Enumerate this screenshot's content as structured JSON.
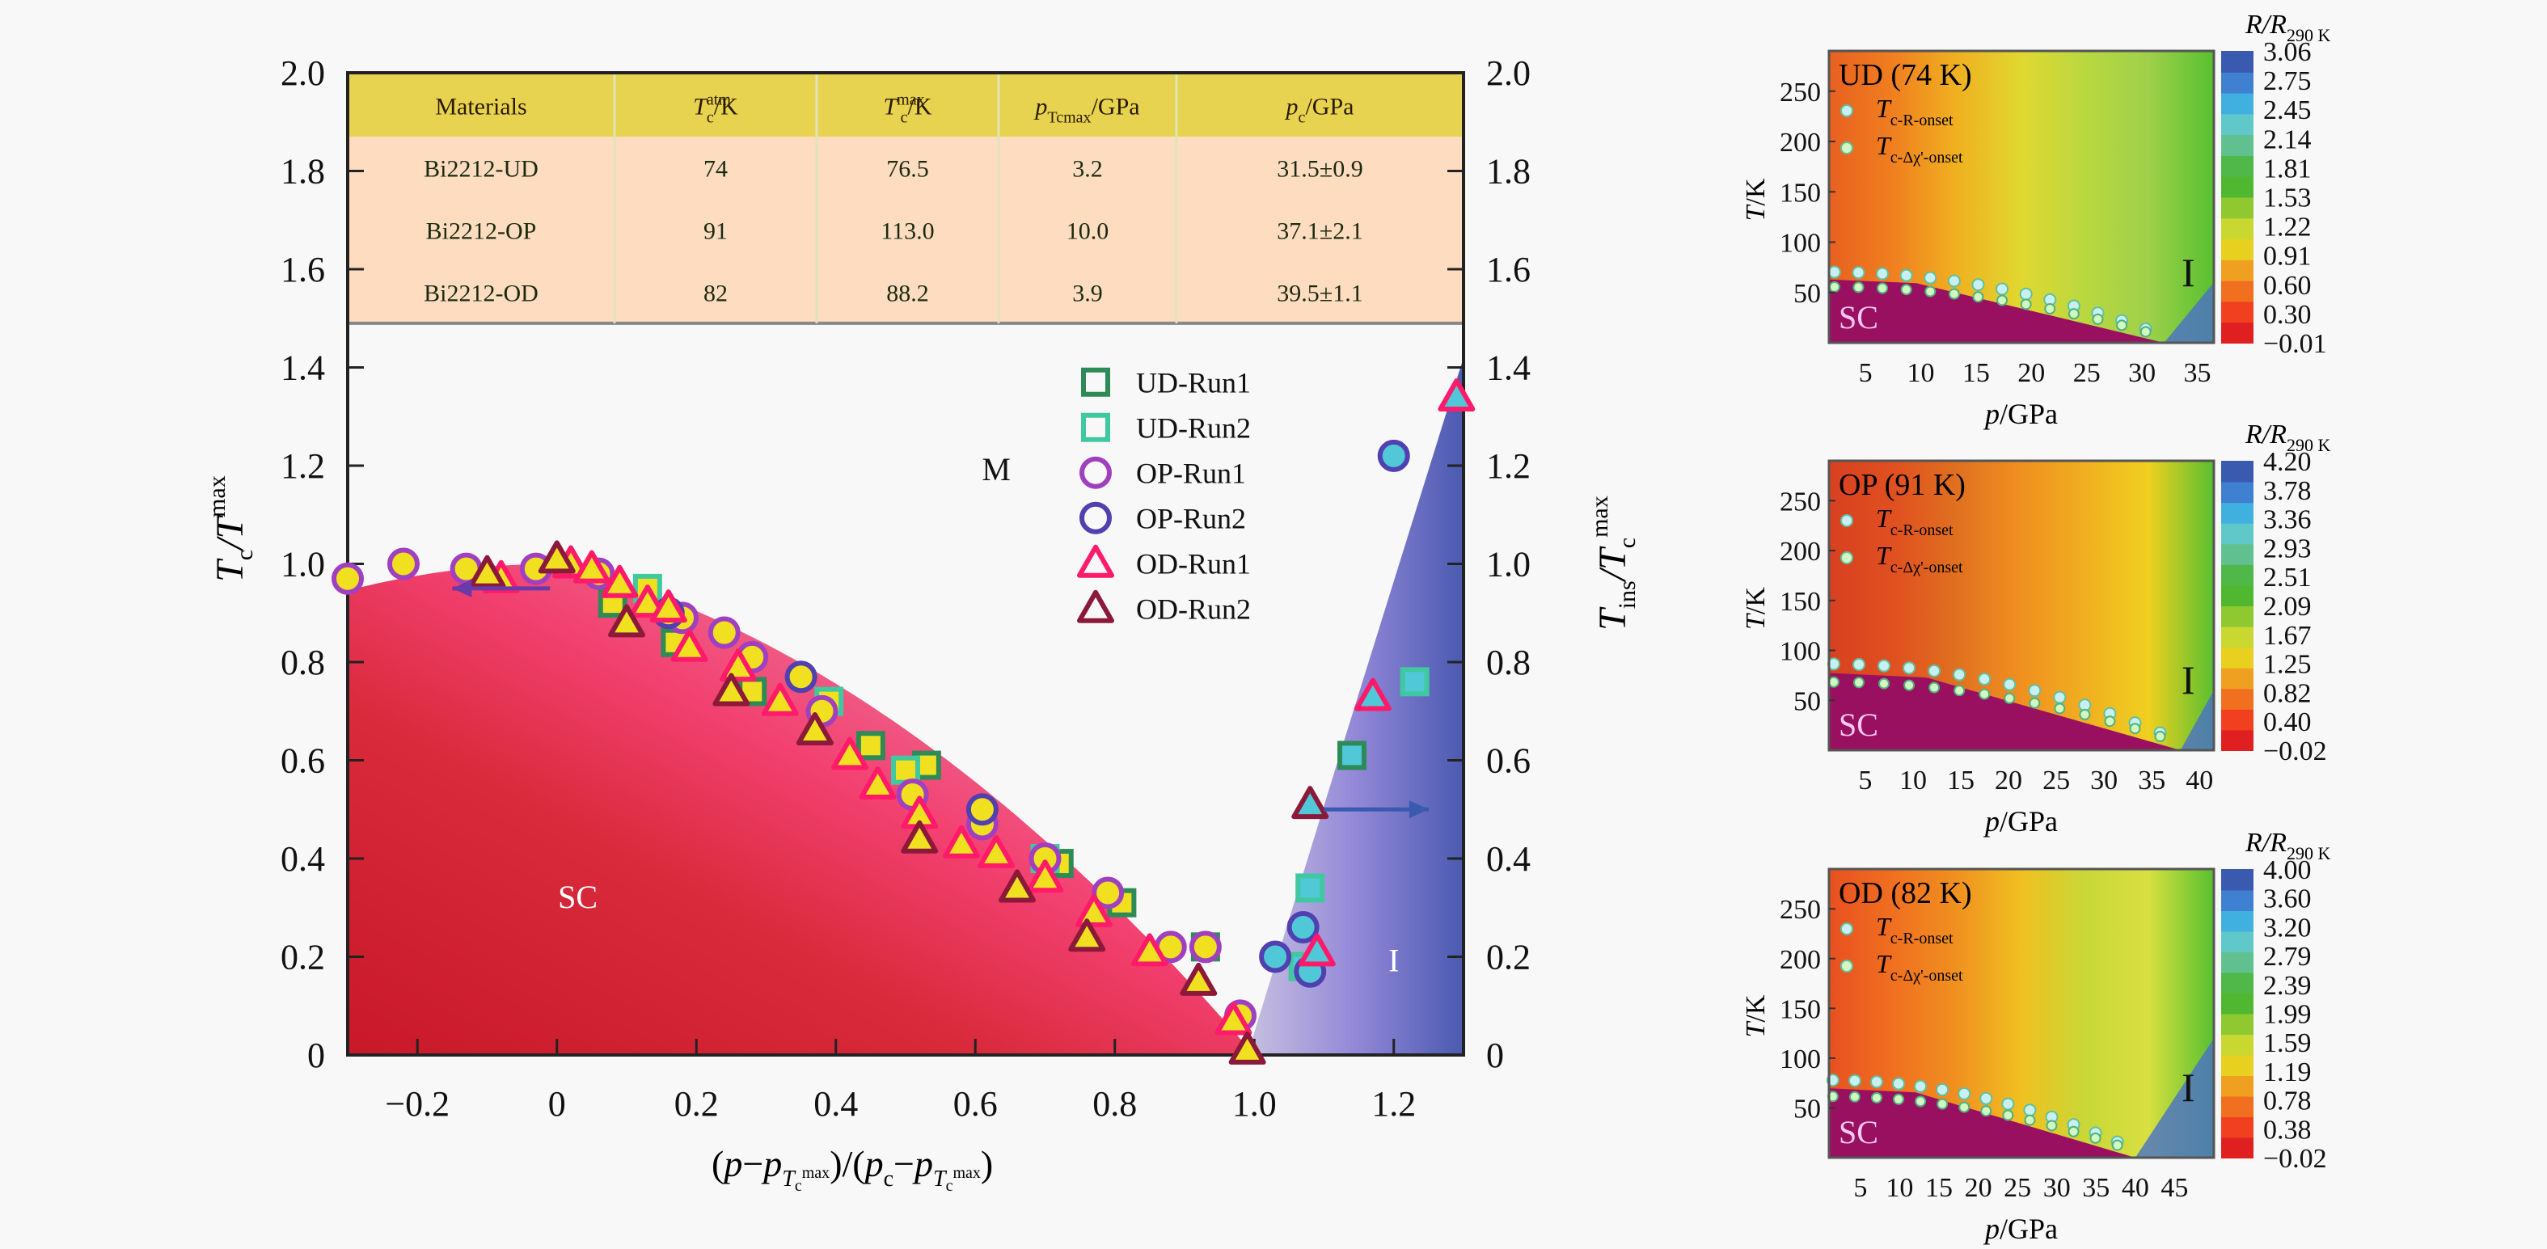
{
  "figure": {
    "description": "Pressure phase diagram of Bi2212 superconductors (UD, OP, OD)",
    "colors": {
      "background": "#f8f8f8",
      "table_header": "#e8d350",
      "table_body": "#fddcc0",
      "sc_region": "#d42a3a",
      "insulator_region": "#7a72c8",
      "ud_run1": "#2e8b57",
      "ud_run2": "#40c8a0",
      "op_run1": "#a040c0",
      "op_run2": "#5040b0",
      "od_run1": "#ff1a6a",
      "od_run2": "#8b1a3a",
      "marker_fill": "#f0e020",
      "marker_fill_insulating": "#50c8d8",
      "arrow_left": "#6a3aa8",
      "arrow_right": "#3a5ab0",
      "heatmap_sc": "#9a1060"
    }
  },
  "table": {
    "headers": [
      "Materials",
      "Tcatm/K",
      "Tcmax/K",
      "pTcmax/GPa",
      "pc/GPa"
    ],
    "header_parts": [
      {
        "main": "Materials",
        "sub": "",
        "sup": "",
        "unit": ""
      },
      {
        "main": "T",
        "sub": "c",
        "sup": "atm",
        "unit": "/K"
      },
      {
        "main": "T",
        "sub": "c",
        "sup": "max",
        "unit": "/K"
      },
      {
        "main": "p",
        "sub": "Tcmax",
        "sup": "",
        "unit": "/GPa"
      },
      {
        "main": "p",
        "sub": "c",
        "sup": "",
        "unit": "/GPa"
      }
    ],
    "rows": [
      [
        "Bi2212-UD",
        "74",
        "76.5",
        "3.2",
        "31.5±0.9"
      ],
      [
        "Bi2212-OP",
        "91",
        "113.0",
        "10.0",
        "37.1±2.1"
      ],
      [
        "Bi2212-OD",
        "82",
        "88.2",
        "3.9",
        "39.5±1.1"
      ]
    ]
  },
  "chart_data": [
    {
      "type": "scatter",
      "title": "",
      "xlabel": "(p−p_Tcmax)/(pc−p_Tcmax)",
      "ylabel_left": "Tc/Tcmax",
      "ylabel_right": "Tins/Tcmax",
      "xlim": [
        -0.3,
        1.3
      ],
      "ylim": [
        0,
        2.0
      ],
      "x_ticks": [
        "−0.2",
        "0",
        "0.2",
        "0.4",
        "0.6",
        "0.8",
        "1.0",
        "1.2"
      ],
      "x_tick_values": [
        -0.2,
        0,
        0.2,
        0.4,
        0.6,
        0.8,
        1.0,
        1.2
      ],
      "y_ticks": [
        "0",
        "0.2",
        "0.4",
        "0.6",
        "0.8",
        "1.0",
        "1.2",
        "1.4",
        "1.6",
        "1.8",
        "2.0"
      ],
      "y_tick_values": [
        0,
        0.2,
        0.4,
        0.6,
        0.8,
        1.0,
        1.2,
        1.4,
        1.6,
        1.8,
        2.0
      ],
      "region_labels": [
        {
          "text": "SC",
          "x": 0.03,
          "y": 0.3
        },
        {
          "text": "M",
          "x": 0.63,
          "y": 1.17
        },
        {
          "text": "I",
          "x": 1.2,
          "y": 0.17
        }
      ],
      "legend_position": "top-center",
      "series": [
        {
          "name": "UD-Run1",
          "marker": "square",
          "points": [
            [
              0.08,
              0.92
            ],
            [
              0.17,
              0.84
            ],
            [
              0.28,
              0.74
            ],
            [
              0.45,
              0.63
            ],
            [
              0.53,
              0.59
            ],
            [
              0.72,
              0.39
            ],
            [
              0.81,
              0.31
            ],
            [
              0.93,
              0.22
            ],
            [
              1.14,
              0.61
            ]
          ]
        },
        {
          "name": "UD-Run2",
          "marker": "square",
          "points": [
            [
              0.13,
              0.95
            ],
            [
              0.39,
              0.72
            ],
            [
              0.5,
              0.58
            ],
            [
              0.7,
              0.4
            ],
            [
              1.08,
              0.34
            ],
            [
              1.07,
              0.18
            ],
            [
              1.23,
              0.76
            ]
          ]
        },
        {
          "name": "OP-Run1",
          "marker": "circle",
          "points": [
            [
              -0.3,
              0.97
            ],
            [
              -0.22,
              1.0
            ],
            [
              -0.13,
              0.99
            ],
            [
              -0.03,
              0.99
            ],
            [
              0.06,
              0.98
            ],
            [
              0.18,
              0.89
            ],
            [
              0.24,
              0.86
            ],
            [
              0.28,
              0.81
            ],
            [
              0.38,
              0.7
            ],
            [
              0.51,
              0.53
            ],
            [
              0.61,
              0.47
            ],
            [
              0.7,
              0.4
            ],
            [
              0.79,
              0.33
            ],
            [
              0.88,
              0.22
            ],
            [
              0.93,
              0.22
            ],
            [
              0.98,
              0.08
            ]
          ]
        },
        {
          "name": "OP-Run2",
          "marker": "circle",
          "points": [
            [
              0.16,
              0.9
            ],
            [
              0.35,
              0.77
            ],
            [
              0.61,
              0.5
            ],
            [
              1.03,
              0.2
            ],
            [
              1.07,
              0.26
            ],
            [
              1.08,
              0.17
            ],
            [
              1.2,
              1.22
            ]
          ]
        },
        {
          "name": "OD-Run1",
          "marker": "triangle",
          "points": [
            [
              -0.08,
              0.97
            ],
            [
              0.02,
              1.0
            ],
            [
              0.05,
              0.99
            ],
            [
              0.09,
              0.96
            ],
            [
              0.13,
              0.92
            ],
            [
              0.16,
              0.91
            ],
            [
              0.19,
              0.83
            ],
            [
              0.26,
              0.79
            ],
            [
              0.32,
              0.72
            ],
            [
              0.37,
              0.66
            ],
            [
              0.42,
              0.61
            ],
            [
              0.46,
              0.55
            ],
            [
              0.52,
              0.49
            ],
            [
              0.58,
              0.43
            ],
            [
              0.63,
              0.41
            ],
            [
              0.7,
              0.36
            ],
            [
              0.77,
              0.29
            ],
            [
              0.85,
              0.21
            ],
            [
              0.97,
              0.07
            ],
            [
              1.09,
              0.21
            ],
            [
              1.17,
              0.73
            ],
            [
              1.29,
              1.34
            ]
          ]
        },
        {
          "name": "OD-Run2",
          "marker": "triangle",
          "points": [
            [
              -0.1,
              0.98
            ],
            [
              0.0,
              1.01
            ],
            [
              0.1,
              0.88
            ],
            [
              0.25,
              0.74
            ],
            [
              0.37,
              0.66
            ],
            [
              0.52,
              0.44
            ],
            [
              0.66,
              0.34
            ],
            [
              0.76,
              0.24
            ],
            [
              0.92,
              0.15
            ],
            [
              0.99,
              0.01
            ],
            [
              1.08,
              0.51
            ]
          ]
        }
      ],
      "arrows": [
        {
          "direction": "left",
          "meaning": "left axis",
          "x_from": -0.01,
          "x_to": -0.15,
          "y": 0.95
        },
        {
          "direction": "right",
          "meaning": "right axis",
          "x_from": 1.1,
          "x_to": 1.25,
          "y": 0.5
        }
      ]
    },
    {
      "type": "heatmap",
      "title": "UD (74 K)",
      "xlabel": "p/GPa",
      "ylabel": "T/K",
      "x_ticks": [
        "5",
        "10",
        "15",
        "20",
        "25",
        "30",
        "35"
      ],
      "xlim": [
        1.7,
        36.5
      ],
      "y_ticks": [
        "50",
        "100",
        "150",
        "200",
        "250"
      ],
      "ylim": [
        0,
        290
      ],
      "colorbar_label": "R/R290 K",
      "colorbar_ticks": [
        "3.06",
        "2.75",
        "2.45",
        "2.14",
        "1.81",
        "1.53",
        "1.22",
        "0.91",
        "0.60",
        "0.30",
        "−0.01"
      ],
      "legend": [
        "Tc-R-onset",
        "Tc-Δχ'-onset"
      ],
      "region_labels": [
        "SC",
        "I"
      ]
    },
    {
      "type": "heatmap",
      "title": "OP (91 K)",
      "xlabel": "p/GPa",
      "ylabel": "T/K",
      "x_ticks": [
        "5",
        "10",
        "15",
        "20",
        "25",
        "30",
        "35",
        "40"
      ],
      "xlim": [
        1.2,
        41.5
      ],
      "y_ticks": [
        "50",
        "100",
        "150",
        "200",
        "250"
      ],
      "ylim": [
        0,
        290
      ],
      "colorbar_label": "R/R290 K",
      "colorbar_ticks": [
        "4.20",
        "3.78",
        "3.36",
        "2.93",
        "2.51",
        "2.09",
        "1.67",
        "1.25",
        "0.82",
        "0.40",
        "−0.02"
      ],
      "legend": [
        "Tc-R-onset",
        "Tc-Δχ'-onset"
      ],
      "region_labels": [
        "SC",
        "I"
      ]
    },
    {
      "type": "heatmap",
      "title": "OD (82 K)",
      "xlabel": "p/GPa",
      "ylabel": "T/K",
      "x_ticks": [
        "5",
        "10",
        "15",
        "20",
        "25",
        "30",
        "35",
        "40",
        "45"
      ],
      "xlim": [
        1.0,
        50.0
      ],
      "y_ticks": [
        "50",
        "100",
        "150",
        "200",
        "250"
      ],
      "ylim": [
        0,
        290
      ],
      "colorbar_label": "R/R290 K",
      "colorbar_ticks": [
        "4.00",
        "3.60",
        "3.20",
        "2.79",
        "2.39",
        "1.99",
        "1.59",
        "1.19",
        "0.78",
        "0.38",
        "−0.02"
      ],
      "legend": [
        "Tc-R-onset",
        "Tc-Δχ'-onset"
      ],
      "region_labels": [
        "SC",
        "I"
      ]
    }
  ],
  "labels": {
    "ylabel_left_main": "T",
    "ylabel_left_sub": "c",
    "ylabel_left_mid": "/T",
    "ylabel_left_sup": "max",
    "ylabel_right_main": "T",
    "ylabel_right_sub": "ins",
    "ylabel_right_mid": "/T",
    "ylabel_right_sub2": "c",
    "ylabel_right_sup": "max",
    "xlabel_p": "p",
    "xlabel_minus": "−",
    "xlabel_sub": "T",
    "xlabel_sub2": "c",
    "xlabel_sup": "max",
    "xlabel_pc": "p",
    "xlabel_pc_sub": "c",
    "heat_y_main": "T",
    "heat_y_unit": "/K",
    "heat_x_main": "p",
    "heat_x_unit": "/GPa",
    "cb_R": "R",
    "cb_slash": "/R",
    "cb_sub": "290 K",
    "leg_T": "T",
    "leg_sub1": "c-R-onset",
    "leg_sub2": "c-Δχ'-onset"
  }
}
